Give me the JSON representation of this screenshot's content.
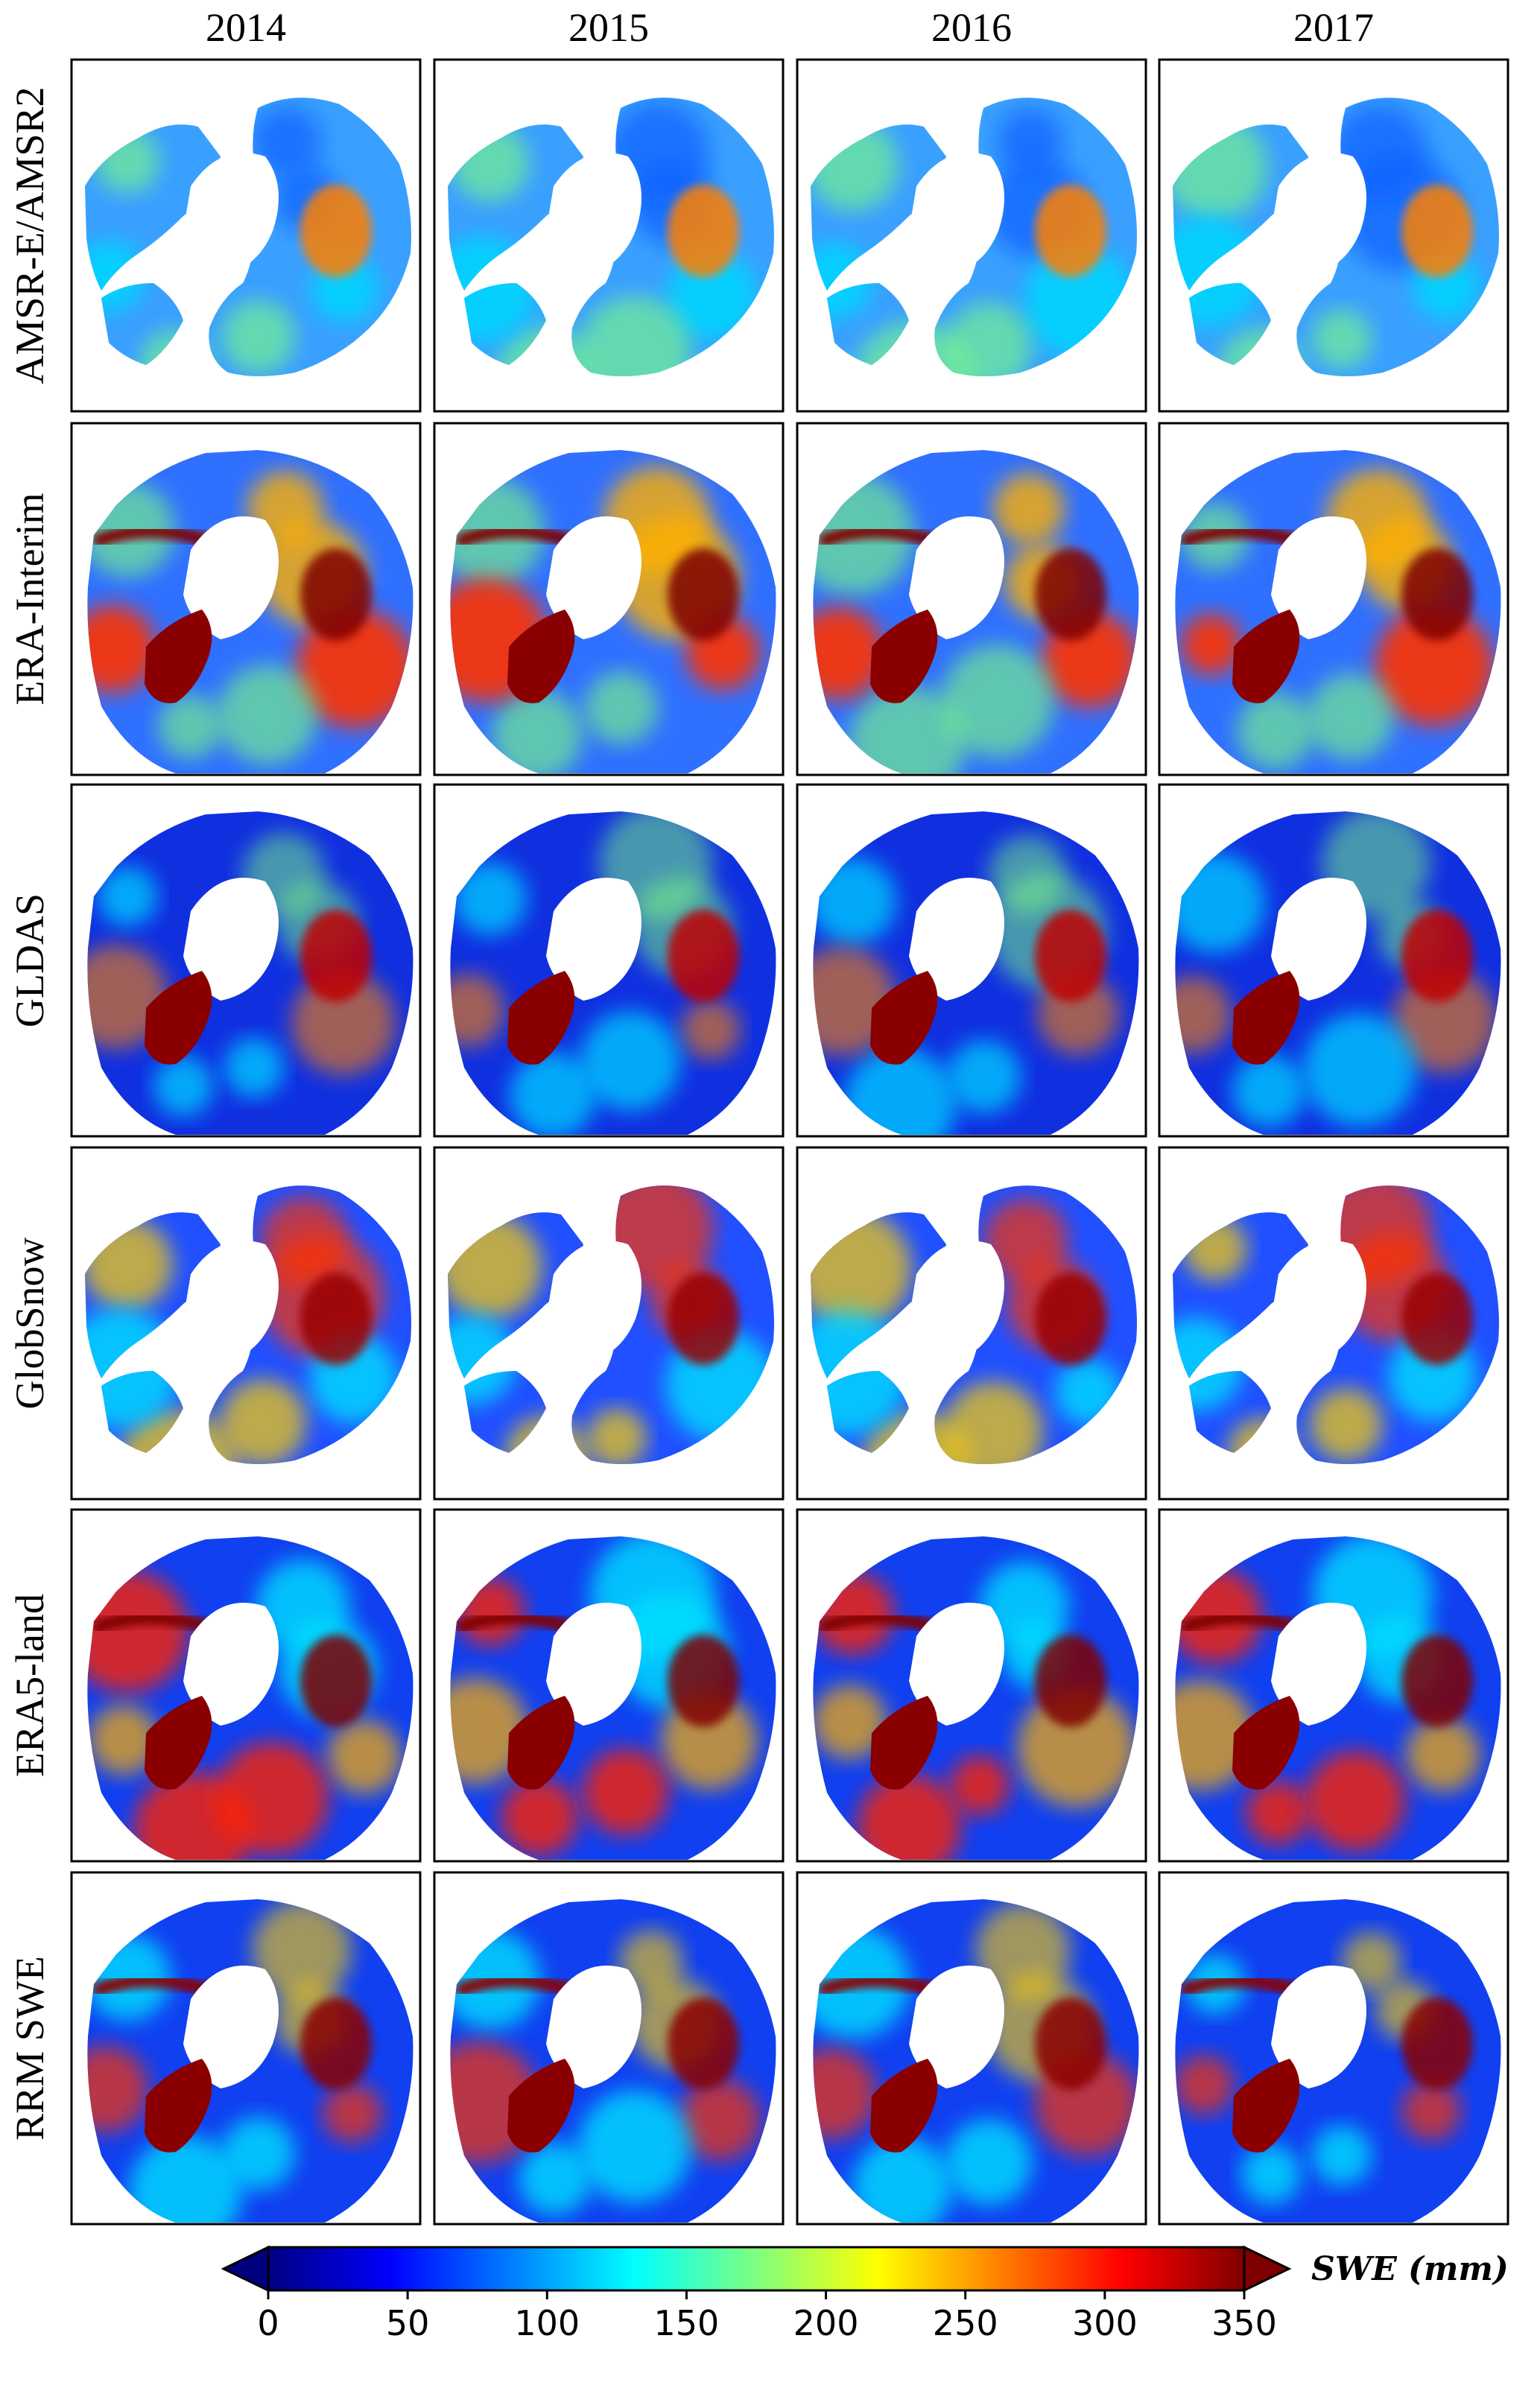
{
  "columns": [
    "2014",
    "2015",
    "2016",
    "2017"
  ],
  "rows": [
    {
      "label": "AMSR-E/AMSR2",
      "key": "amsr"
    },
    {
      "label": "ERA-Interim",
      "key": "era"
    },
    {
      "label": "GLDAS",
      "key": "gldas"
    },
    {
      "label": "GlobSnow",
      "key": "globsnow"
    },
    {
      "label": "ERA5-land",
      "key": "era5"
    },
    {
      "label": "RRM SWE",
      "key": "rrm"
    }
  ],
  "colorbar": {
    "title": "SWE (mm)",
    "min": 0,
    "max": 350,
    "extend": "both",
    "ticks": [
      "0",
      "50",
      "100",
      "150",
      "200",
      "250",
      "300",
      "350"
    ],
    "colormap": "jet",
    "stops": [
      "#00007f",
      "#0000ff",
      "#007fff",
      "#00ffff",
      "#7fff7f",
      "#ffff00",
      "#ff7f00",
      "#ff0000",
      "#7f0000"
    ]
  }
}
